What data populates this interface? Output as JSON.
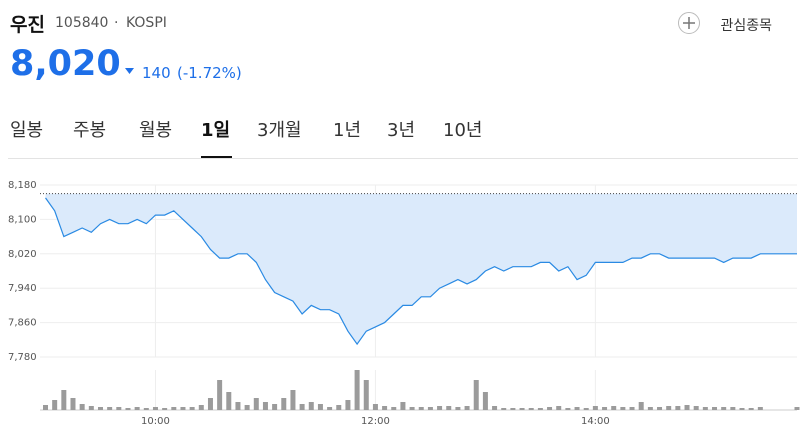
{
  "header": {
    "name": "우진",
    "code": "105840",
    "separator": "·",
    "market": "KOSPI",
    "watch_label": "관심종목"
  },
  "quote": {
    "price": "8,020",
    "change": "140",
    "change_pct": "(-1.72%)"
  },
  "tabs": {
    "items": [
      "일봉",
      "주봉",
      "월봉",
      "1일",
      "3개월",
      "1년",
      "3년",
      "10년"
    ],
    "selected": 3
  },
  "chart_data": {
    "type": "line",
    "x": [
      540,
      545,
      550,
      555,
      560,
      565,
      570,
      575,
      580,
      585,
      590,
      595,
      600,
      605,
      610,
      615,
      620,
      625,
      630,
      635,
      640,
      645,
      650,
      655,
      660,
      665,
      670,
      675,
      680,
      685,
      690,
      695,
      700,
      705,
      710,
      715,
      720,
      725,
      730,
      735,
      740,
      745,
      750,
      755,
      760,
      765,
      770,
      775,
      780,
      785,
      790,
      795,
      800,
      805,
      810,
      815,
      820,
      825,
      830,
      835,
      840,
      845,
      850,
      855,
      860,
      865,
      870,
      875,
      880,
      885,
      890,
      895,
      900,
      905,
      910,
      915,
      920,
      925,
      930,
      935,
      940,
      945,
      950
    ],
    "values": [
      8150,
      8120,
      8060,
      8070,
      8080,
      8070,
      8090,
      8100,
      8090,
      8090,
      8100,
      8090,
      8110,
      8110,
      8120,
      8100,
      8080,
      8060,
      8030,
      8010,
      8010,
      8020,
      8020,
      8000,
      7960,
      7930,
      7920,
      7910,
      7880,
      7900,
      7890,
      7890,
      7880,
      7840,
      7810,
      7840,
      7850,
      7860,
      7880,
      7900,
      7900,
      7920,
      7920,
      7940,
      7950,
      7960,
      7950,
      7960,
      7980,
      7990,
      7980,
      7990,
      7990,
      7990,
      8000,
      8000,
      7980,
      7990,
      7960,
      7970,
      8000,
      8000,
      8000,
      8000,
      8010,
      8010,
      8020,
      8020,
      8010,
      8010,
      8010,
      8010,
      8010,
      8010,
      8000,
      8010,
      8010,
      8010,
      8020,
      8020,
      8020,
      8020,
      8020
    ],
    "volume": [
      5,
      10,
      20,
      12,
      6,
      4,
      3,
      3,
      3,
      2,
      3,
      2,
      3,
      2,
      3,
      3,
      3,
      5,
      12,
      30,
      18,
      8,
      5,
      12,
      8,
      6,
      12,
      20,
      6,
      8,
      6,
      3,
      5,
      10,
      40,
      30,
      6,
      4,
      3,
      8,
      3,
      3,
      3,
      4,
      4,
      3,
      4,
      30,
      18,
      4,
      2,
      2,
      2,
      2,
      2,
      3,
      4,
      2,
      3,
      2,
      4,
      3,
      4,
      3,
      3,
      8,
      3,
      3,
      4,
      4,
      5,
      4,
      3,
      3,
      3,
      3,
      2,
      2,
      3,
      0,
      0,
      0,
      3
    ],
    "color": "#2a8ae3",
    "fill_color": "#dbeafb",
    "volume_color": "#9b9b9b",
    "reference_line": 8160,
    "xlim": [
      537,
      950
    ],
    "xticks": [
      {
        "value": 600,
        "label": "10:00"
      },
      {
        "value": 720,
        "label": "12:00"
      },
      {
        "value": 840,
        "label": "14:00"
      }
    ],
    "ylim": [
      7780,
      8180
    ],
    "yticks": [
      {
        "value": 7780,
        "label": "7,780"
      },
      {
        "value": 7860,
        "label": "7,860"
      },
      {
        "value": 7940,
        "label": "7,940"
      },
      {
        "value": 8020,
        "label": "8,020"
      },
      {
        "value": 8100,
        "label": "8,100"
      },
      {
        "value": 8180,
        "label": "8,180"
      }
    ],
    "volume_lim": [
      0,
      40
    ],
    "grid": true
  }
}
